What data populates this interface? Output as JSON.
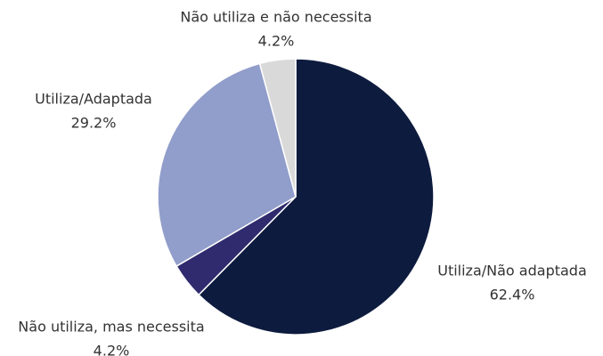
{
  "chart_data": {
    "type": "pie",
    "categories": [
      "Utiliza/Não adaptada",
      "Não utiliza, mas necessita",
      "Utiliza/Adaptada",
      "Não utiliza e não necessita"
    ],
    "values": [
      62.4,
      4.2,
      29.2,
      4.2
    ],
    "value_labels": [
      "62.4%",
      "4.2%",
      "29.2%",
      "4.2%"
    ],
    "colors": [
      "#0d1b3e",
      "#2f2b6e",
      "#919dca",
      "#d9d9d9"
    ]
  }
}
